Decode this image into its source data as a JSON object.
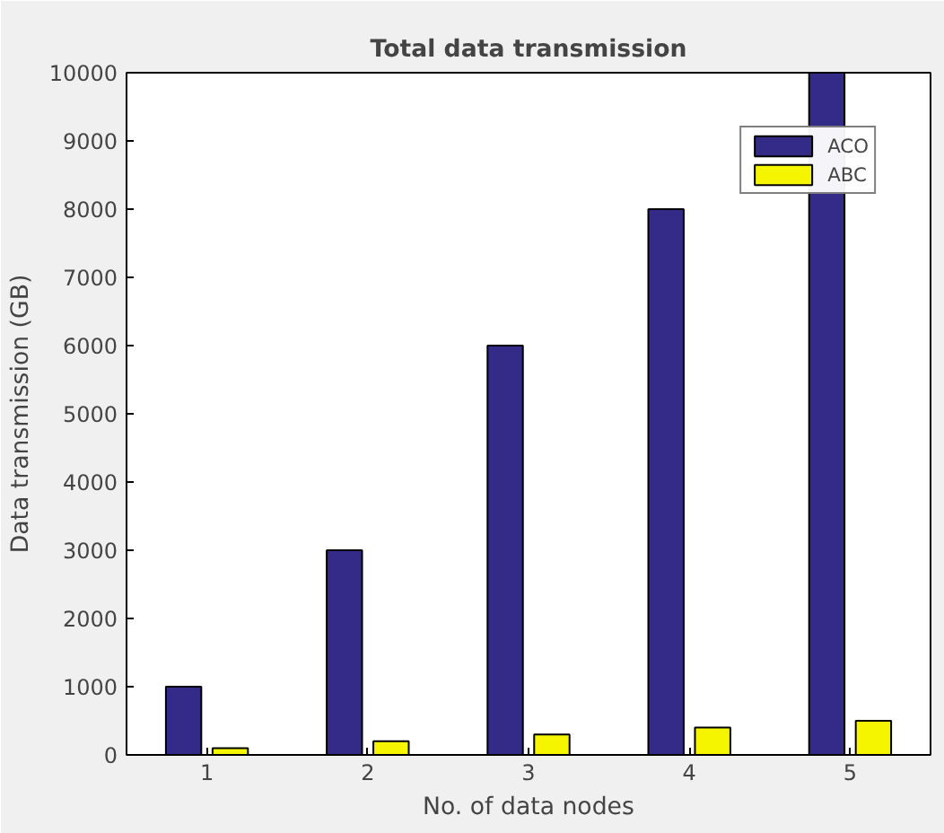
{
  "chart_data": {
    "type": "bar",
    "title": "Total data transmission",
    "xlabel": "No. of data nodes",
    "ylabel": "Data transmission (GB)",
    "x": [
      1,
      2,
      3,
      4,
      5
    ],
    "xlim": [
      0.5,
      5.5
    ],
    "xticks": [
      1,
      2,
      3,
      4,
      5
    ],
    "ylim": [
      0,
      10000
    ],
    "yticks": [
      0,
      1000,
      2000,
      3000,
      4000,
      5000,
      6000,
      7000,
      8000,
      9000,
      10000
    ],
    "series": [
      {
        "name": "ACO",
        "color": "#342a87",
        "values": [
          1000,
          3000,
          6000,
          8000,
          10000
        ]
      },
      {
        "name": "ABC",
        "color": "#f5f500",
        "values": [
          100,
          200,
          300,
          400,
          500
        ]
      }
    ],
    "grid": false,
    "legend": "top right"
  }
}
